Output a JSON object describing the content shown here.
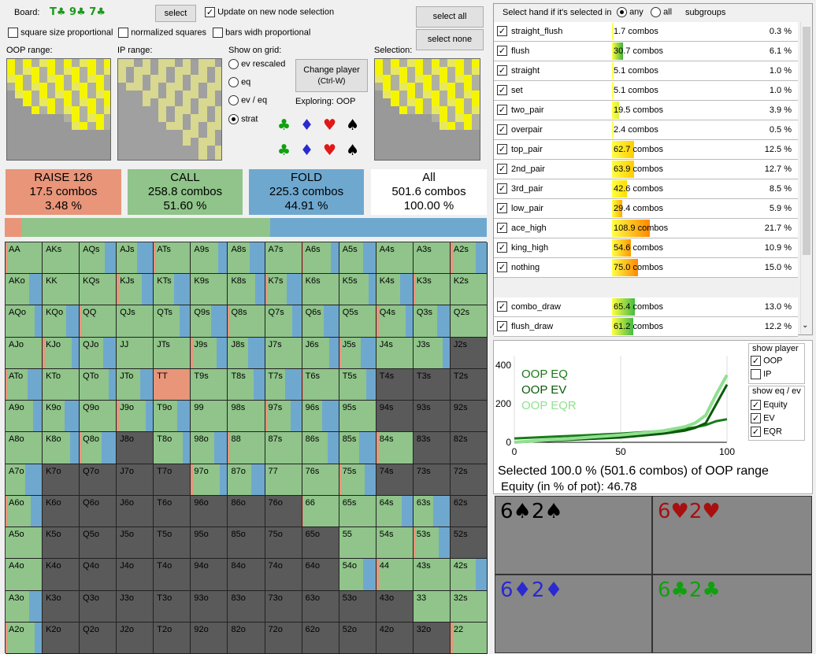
{
  "board": {
    "label": "Board:",
    "cards": "T♣ 9♣ 7♣"
  },
  "buttons": {
    "select": "select",
    "select_all": "select all",
    "select_none": "select none",
    "change_player_l1": "Change player",
    "change_player_l2": "(Ctrl-W)"
  },
  "opts": {
    "update": "Update on new node selection",
    "sq_prop": "square size proportional",
    "norm": "normalized squares",
    "bars": "bars widh proportional"
  },
  "labels": {
    "oop": "OOP range:",
    "ip": "IP range:",
    "show": "Show on grid:",
    "selection": "Selection:",
    "exploring": "Exploring: OOP"
  },
  "radios": [
    "ev rescaled",
    "eq",
    "ev / eq",
    "strat"
  ],
  "summary": [
    {
      "name": "RAISE 126",
      "combos": "17.5 combos",
      "pct": "3.48 %",
      "color": "#e8957a"
    },
    {
      "name": "CALL",
      "combos": "258.8 combos",
      "pct": "51.60 %",
      "color": "#90c48a"
    },
    {
      "name": "FOLD",
      "combos": "225.3 combos",
      "pct": "44.91 %",
      "color": "#6fa8cf"
    },
    {
      "name": "All",
      "combos": "501.6 combos",
      "pct": "100.00 %",
      "color": "#ffffff"
    }
  ],
  "strat_bar": {
    "raise": 3.48,
    "call": 51.6,
    "fold": 44.91
  },
  "hand_panel": {
    "title": "Select hand if it's selected in",
    "any": "any",
    "all": "all",
    "subgroups": "subgroups"
  },
  "categories": [
    {
      "name": "straight_flush",
      "combos": "1.7",
      "pct": "0.3 %"
    },
    {
      "name": "flush",
      "combos": "30.7",
      "pct": "6.1 %"
    },
    {
      "name": "straight",
      "combos": "5.1",
      "pct": "1.0 %"
    },
    {
      "name": "set",
      "combos": "5.1",
      "pct": "1.0 %"
    },
    {
      "name": "two_pair",
      "combos": "19.5",
      "pct": "3.9 %"
    },
    {
      "name": "overpair",
      "combos": "2.4",
      "pct": "0.5 %"
    },
    {
      "name": "top_pair",
      "combos": "62.7",
      "pct": "12.5 %"
    },
    {
      "name": "2nd_pair",
      "combos": "63.9",
      "pct": "12.7 %"
    },
    {
      "name": "3rd_pair",
      "combos": "42.6",
      "pct": "8.5 %"
    },
    {
      "name": "low_pair",
      "combos": "29.4",
      "pct": "5.9 %"
    },
    {
      "name": "ace_high",
      "combos": "108.9",
      "pct": "21.7 %"
    },
    {
      "name": "king_high",
      "combos": "54.6",
      "pct": "10.9 %"
    },
    {
      "name": "nothing",
      "combos": "75.0",
      "pct": "15.0 %"
    }
  ],
  "draws": [
    {
      "name": "combo_draw",
      "combos": "65.4",
      "pct": "13.0 %"
    },
    {
      "name": "flush_draw",
      "combos": "61.2",
      "pct": "12.2 %"
    }
  ],
  "combos_word": "combos",
  "chart": {
    "legend": [
      "OOP EQ",
      "OOP EV",
      "OOP EQR"
    ],
    "yticks": [
      "400",
      "200",
      "0"
    ],
    "xticks": [
      "0",
      "50",
      "100"
    ]
  },
  "chart_data": {
    "type": "line",
    "x": [
      0,
      10,
      20,
      30,
      40,
      50,
      60,
      70,
      80,
      85,
      90,
      95,
      100
    ],
    "series": [
      {
        "name": "OOP EQ",
        "values": [
          20,
          25,
          30,
          35,
          40,
          45,
          52,
          60,
          70,
          78,
          90,
          110,
          120
        ]
      },
      {
        "name": "OOP EV",
        "values": [
          0,
          5,
          10,
          15,
          20,
          25,
          35,
          45,
          60,
          75,
          100,
          200,
          300
        ]
      },
      {
        "name": "OOP EQR",
        "values": [
          0,
          8,
          15,
          22,
          30,
          38,
          48,
          60,
          80,
          100,
          140,
          250,
          350
        ]
      }
    ],
    "ylim": [
      0,
      450
    ],
    "xlim": [
      0,
      100
    ]
  },
  "show_player": {
    "title": "show player",
    "oop": "OOP",
    "ip": "IP"
  },
  "show_eq": {
    "title": "show eq / ev",
    "equity": "Equity",
    "ev": "EV",
    "eqr": "EQR"
  },
  "selected_text": "Selected 100.0 % (501.6 combos) of OOP range",
  "equity_text": "Equity (in % of pot): 46.78",
  "cards": [
    {
      "text": "6♠2♠",
      "color": "#000000"
    },
    {
      "text": "6♥2♥",
      "color": "#a81010"
    },
    {
      "text": "6♦2♦",
      "color": "#2a2ad0"
    },
    {
      "text": "6♣2♣",
      "color": "#10a010"
    }
  ],
  "suits": [
    "♣",
    "♦",
    "♥",
    "♠"
  ],
  "grid_rows": [
    [
      "AA",
      "AKs",
      "AQs",
      "AJs",
      "ATs",
      "A9s",
      "A8s",
      "A7s",
      "A6s",
      "A5s",
      "A4s",
      "A3s",
      "A2s"
    ],
    [
      "AKo",
      "KK",
      "KQs",
      "KJs",
      "KTs",
      "K9s",
      "K8s",
      "K7s",
      "K6s",
      "K5s",
      "K4s",
      "K3s",
      "K2s"
    ],
    [
      "AQo",
      "KQo",
      "QQ",
      "QJs",
      "QTs",
      "Q9s",
      "Q8s",
      "Q7s",
      "Q6s",
      "Q5s",
      "Q4s",
      "Q3s",
      "Q2s"
    ],
    [
      "AJo",
      "KJo",
      "QJo",
      "JJ",
      "JTs",
      "J9s",
      "J8s",
      "J7s",
      "J6s",
      "J5s",
      "J4s",
      "J3s",
      "J2s"
    ],
    [
      "ATo",
      "KTo",
      "QTo",
      "JTo",
      "TT",
      "T9s",
      "T8s",
      "T7s",
      "T6s",
      "T5s",
      "T4s",
      "T3s",
      "T2s"
    ],
    [
      "A9o",
      "K9o",
      "Q9o",
      "J9o",
      "T9o",
      "99",
      "98s",
      "97s",
      "96s",
      "95s",
      "94s",
      "93s",
      "92s"
    ],
    [
      "A8o",
      "K8o",
      "Q8o",
      "J8o",
      "T8o",
      "98o",
      "88",
      "87s",
      "86s",
      "85s",
      "84s",
      "83s",
      "82s"
    ],
    [
      "A7o",
      "K7o",
      "Q7o",
      "J7o",
      "T7o",
      "97o",
      "87o",
      "77",
      "76s",
      "75s",
      "74s",
      "73s",
      "72s"
    ],
    [
      "A6o",
      "K6o",
      "Q6o",
      "J6o",
      "T6o",
      "96o",
      "86o",
      "76o",
      "66",
      "65s",
      "64s",
      "63s",
      "62s"
    ],
    [
      "A5o",
      "K5o",
      "Q5o",
      "J5o",
      "T5o",
      "95o",
      "85o",
      "75o",
      "65o",
      "55",
      "54s",
      "53s",
      "52s"
    ],
    [
      "A4o",
      "K4o",
      "Q4o",
      "J4o",
      "T4o",
      "94o",
      "84o",
      "74o",
      "64o",
      "54o",
      "44",
      "43s",
      "42s"
    ],
    [
      "A3o",
      "K3o",
      "Q3o",
      "J3o",
      "T3o",
      "93o",
      "83o",
      "73o",
      "63o",
      "53o",
      "43o",
      "33",
      "32s"
    ],
    [
      "A2o",
      "K2o",
      "Q2o",
      "J2o",
      "T2o",
      "92o",
      "82o",
      "72o",
      "62o",
      "52o",
      "42o",
      "32o",
      "22"
    ]
  ]
}
